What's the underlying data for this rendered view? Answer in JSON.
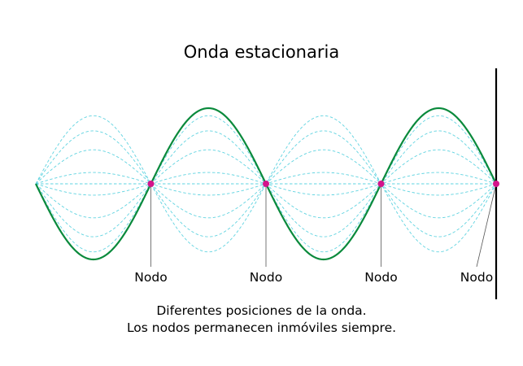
{
  "title": "Onda estacionaria",
  "node_label": "Nodo",
  "caption": {
    "line1": "Diferentes posiciones de la onda.",
    "line2": "Los nodos permanecen inmóviles siempre."
  },
  "colors": {
    "main_wave": "#0a8a3c",
    "ghost_waves": "#5fd3e0",
    "nodes": "#d4148c",
    "wall": "#000000",
    "leader_lines": "#555555"
  },
  "wave": {
    "half_wavelengths": 4,
    "node_count": 5,
    "ghost_amplitude_fractions": [
      -0.9,
      -0.7,
      -0.45,
      -0.15,
      0.15,
      0.45,
      0.7,
      0.9
    ]
  }
}
